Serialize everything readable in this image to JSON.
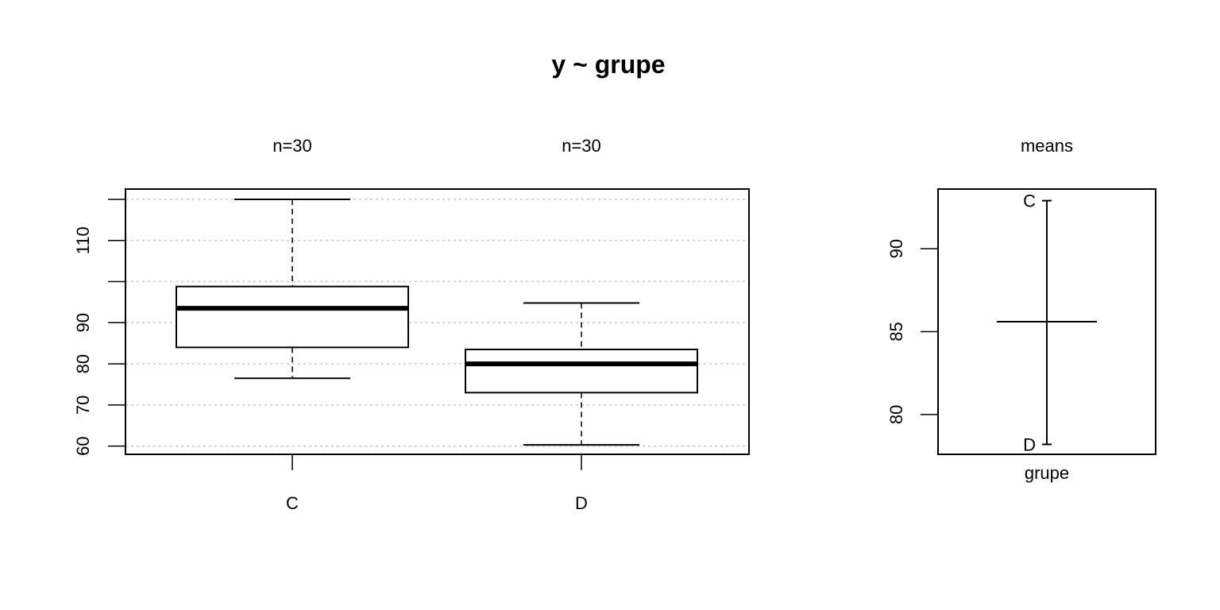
{
  "title": "y ~ grupe",
  "colors": {
    "line": "#000000",
    "grid": "#c8c8c8",
    "background": "#ffffff"
  },
  "chart_data": [
    {
      "type": "boxplot",
      "name_hidden": true,
      "categories": [
        "C",
        "D"
      ],
      "counts_labels": [
        "n=30",
        "n=30"
      ],
      "ylim": [
        58,
        122.5
      ],
      "yticks": [
        60,
        70,
        80,
        90,
        110
      ],
      "grid_y": [
        60,
        70,
        80,
        90,
        100,
        110,
        120
      ],
      "grid": true,
      "boxes": [
        {
          "category": "C",
          "whisker_low": 76.5,
          "q1": 84,
          "median": 93.5,
          "q3": 98.8,
          "whisker_high": 120
        },
        {
          "category": "D",
          "whisker_low": 60.3,
          "q1": 73,
          "median": 80,
          "q3": 83.5,
          "whisker_high": 94.8
        }
      ]
    },
    {
      "type": "means",
      "panel_label": "means",
      "xlabel": "grupe",
      "ylim": [
        77.6,
        93.6
      ],
      "yticks": [
        80,
        85,
        90
      ],
      "points": [
        {
          "label": "C",
          "value": 92.9
        },
        {
          "label": "D",
          "value": 78.2
        }
      ],
      "overall_mean": 85.6
    }
  ]
}
